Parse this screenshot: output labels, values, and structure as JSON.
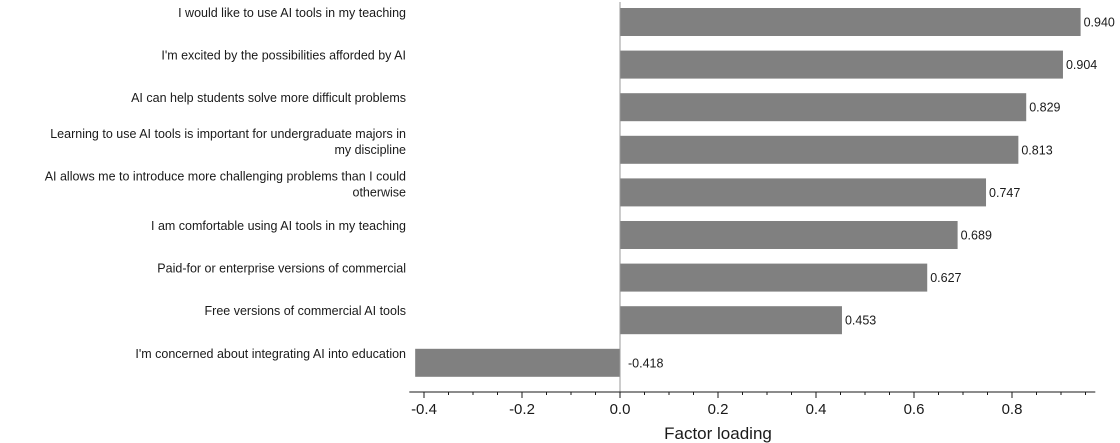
{
  "chart_data": {
    "type": "bar",
    "orientation": "horizontal",
    "categories": [
      [
        "I would like to use AI tools in my teaching"
      ],
      [
        "I'm excited by the possibilities afforded by AI"
      ],
      [
        "AI can help students solve more difficult problems"
      ],
      [
        "Learning to use AI tools is important for undergraduate majors in",
        "my discipline"
      ],
      [
        "AI allows me to introduce more challenging problems than I could",
        "otherwise"
      ],
      [
        "I am comfortable using AI tools in my teaching"
      ],
      [
        "Paid-for or enterprise versions of commercial"
      ],
      [
        "Free versions of commercial AI tools"
      ],
      [
        "I'm concerned about integrating AI into education"
      ]
    ],
    "values": [
      0.94,
      0.904,
      0.829,
      0.813,
      0.747,
      0.689,
      0.627,
      0.453,
      -0.418
    ],
    "value_labels": [
      "0.940",
      "0.904",
      "0.829",
      "0.813",
      "0.747",
      "0.689",
      "0.627",
      "0.453",
      "-0.418"
    ],
    "xlabel": "Factor loading",
    "xlim": [
      -0.43,
      0.97
    ],
    "xticks": [
      -0.4,
      -0.2,
      0.0,
      0.2,
      0.4,
      0.6,
      0.8
    ],
    "xtick_labels": [
      "-0.4",
      "-0.2",
      "0.0",
      "0.2",
      "0.4",
      "0.6",
      "0.8"
    ],
    "grid": false,
    "bar_color": "#808080"
  }
}
